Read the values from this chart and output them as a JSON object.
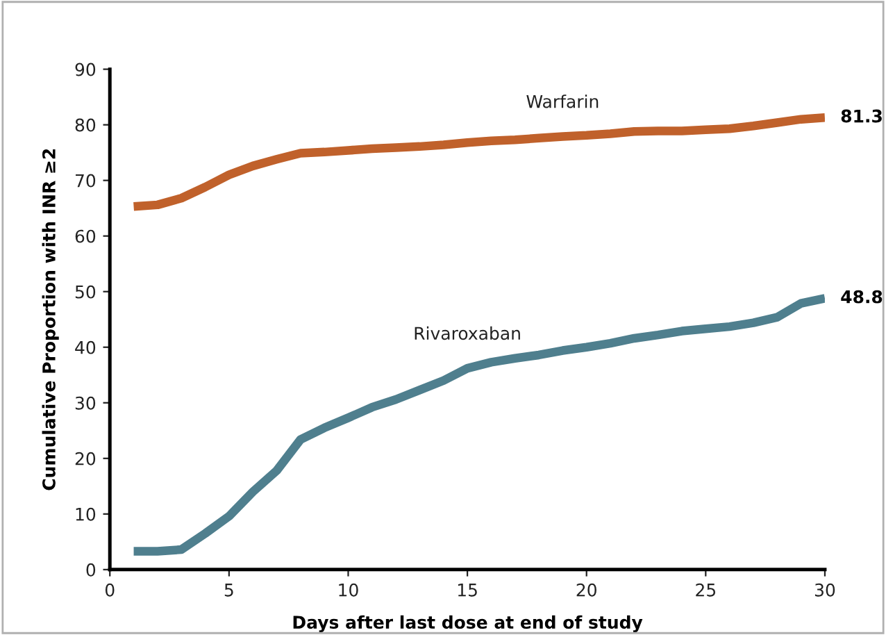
{
  "chart_data": {
    "type": "line",
    "xlabel": "Days after last dose at end of study",
    "ylabel": "Cumulative Proportion with INR ≥2",
    "x": [
      1,
      2,
      3,
      4,
      5,
      6,
      7,
      8,
      9,
      10,
      11,
      12,
      13,
      14,
      15,
      16,
      17,
      18,
      19,
      20,
      21,
      22,
      23,
      24,
      25,
      26,
      27,
      28,
      29,
      30
    ],
    "series": [
      {
        "name": "Warfarin",
        "color": "#c0612b",
        "values": [
          65.3,
          65.6,
          66.8,
          68.8,
          71,
          72.6,
          73.8,
          74.9,
          75.1,
          75.4,
          75.7,
          75.9,
          76.1,
          76.4,
          76.8,
          77.1,
          77.3,
          77.6,
          77.9,
          78.1,
          78.4,
          78.8,
          78.9,
          78.9,
          79.1,
          79.3,
          79.8,
          80.4,
          81,
          81.3
        ],
        "value_labels": [
          null,
          null,
          null,
          null,
          null,
          null,
          null,
          null,
          null,
          null,
          null,
          null,
          null,
          null,
          null,
          null,
          null,
          null,
          null,
          null,
          null,
          null,
          null,
          null,
          null,
          null,
          null,
          null,
          null,
          "81.3"
        ]
      },
      {
        "name": "Rivaroxaban",
        "color": "#4f7f8e",
        "values": [
          3.3,
          3.3,
          3.6,
          6.5,
          9.6,
          14,
          17.8,
          23.4,
          25.5,
          27.3,
          29.2,
          30.6,
          32.3,
          34,
          36.2,
          37.3,
          38,
          38.6,
          39.4,
          40,
          40.7,
          41.6,
          42.2,
          42.9,
          43.3,
          43.7,
          44.4,
          45.4,
          47.9,
          48.8
        ],
        "value_labels": [
          null,
          null,
          null,
          null,
          null,
          null,
          null,
          null,
          null,
          null,
          null,
          null,
          null,
          null,
          null,
          null,
          null,
          null,
          null,
          null,
          null,
          null,
          null,
          null,
          null,
          null,
          null,
          null,
          null,
          "48.8"
        ]
      }
    ],
    "xlim": [
      0,
      30
    ],
    "ylim": [
      0,
      90
    ],
    "xticks": [
      0,
      5,
      10,
      15,
      20,
      25,
      30
    ],
    "yticks": [
      0,
      10,
      20,
      30,
      40,
      50,
      60,
      70,
      80,
      90
    ],
    "grid": false,
    "legend": false,
    "marker": "none",
    "line_style": "solid"
  }
}
